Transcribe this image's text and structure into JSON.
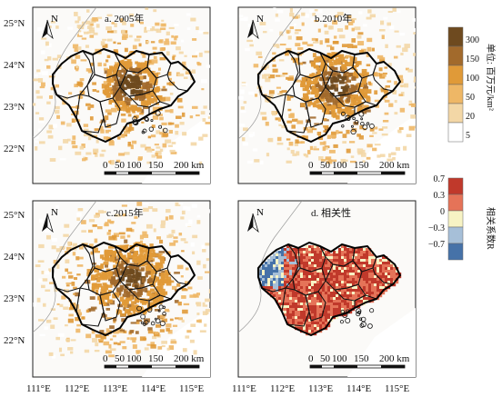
{
  "panels": [
    {
      "id": "a",
      "title": "a. 2005年",
      "variant": "density",
      "intensity": 1.0
    },
    {
      "id": "b",
      "title": "b.2010年",
      "variant": "density",
      "intensity": 1.25
    },
    {
      "id": "c",
      "title": "c.2015年",
      "variant": "density",
      "intensity": 1.55
    },
    {
      "id": "d",
      "title": "d. 相关性",
      "variant": "correlation",
      "intensity": 1.0
    }
  ],
  "north_label": "N",
  "lat_ticks": [
    "25°N",
    "24°N",
    "23°N",
    "22°N"
  ],
  "lon_ticks": [
    "111°E",
    "112°E",
    "113°E",
    "114°E",
    "115°E"
  ],
  "scalebar": {
    "labels": [
      "0",
      "50",
      "100",
      "150",
      "200 km"
    ]
  },
  "legend_density": {
    "title": "单位: 百万元/km²",
    "labels": [
      "300",
      "150",
      "100",
      "50",
      "20",
      "5"
    ],
    "colors": [
      "#6e4a1f",
      "#a26a2c",
      "#e09a38",
      "#eeb766",
      "#f3d7a6",
      "#ffffff"
    ]
  },
  "legend_corr": {
    "title": "相关系数R",
    "labels": [
      "0.7",
      "0.3",
      "0",
      "−0.3",
      "−0.7"
    ],
    "colors": [
      "#c0392b",
      "#e57358",
      "#f7f3c4",
      "#a6bfd8",
      "#4672a8"
    ]
  }
}
